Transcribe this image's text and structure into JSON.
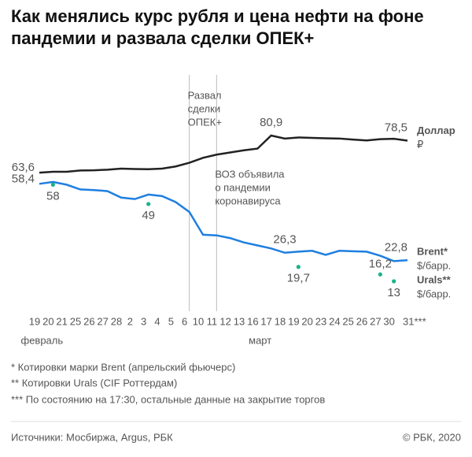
{
  "chart_data": {
    "type": "line",
    "title": [
      "Как менялись курс рубля и цена нефти на фоне",
      "пандемии и развала сделки ОПЕК+"
    ],
    "categories": [
      "19",
      "20",
      "21",
      "25",
      "26",
      "27",
      "28",
      "2",
      "3",
      "4",
      "5",
      "6",
      "10",
      "11",
      "12",
      "13",
      "16",
      "17",
      "18",
      "19",
      "20",
      "23",
      "24",
      "25",
      "26",
      "27",
      "30",
      "31***"
    ],
    "months": [
      {
        "label": "февраль",
        "category": "20"
      },
      {
        "label": "март",
        "category": "17"
      }
    ],
    "series": [
      {
        "name": "Доллар",
        "unit": "₽",
        "color": "#222222",
        "style": "line",
        "values": [
          63.6,
          64.0,
          64.0,
          64.6,
          64.7,
          65.0,
          65.5,
          65.3,
          65.2,
          65.5,
          66.5,
          68.2,
          70.5,
          72.0,
          73.0,
          74.0,
          74.8,
          80.9,
          79.5,
          80.0,
          79.8,
          79.6,
          79.5,
          79.0,
          78.6,
          79.2,
          79.4,
          78.5
        ],
        "value_labels": [
          "63,6",
          null,
          null,
          null,
          null,
          null,
          null,
          null,
          null,
          null,
          null,
          null,
          null,
          null,
          null,
          null,
          null,
          "80,9",
          null,
          null,
          null,
          null,
          null,
          null,
          null,
          null,
          null,
          "78,5"
        ]
      },
      {
        "name": "Brent*",
        "unit": "$/барр.",
        "color": "#1e7fe0",
        "style": "line",
        "values": [
          58.4,
          59.3,
          58.0,
          55.8,
          55.5,
          55.0,
          52.0,
          51.3,
          53.4,
          52.7,
          49.9,
          45.3,
          34.7,
          34.4,
          33.1,
          31.1,
          29.7,
          28.3,
          26.3,
          26.8,
          27.2,
          25.3,
          27.2,
          27.0,
          26.8,
          24.9,
          22.4,
          22.8
        ],
        "value_labels": [
          "58,4",
          null,
          null,
          null,
          null,
          null,
          null,
          null,
          null,
          null,
          null,
          null,
          null,
          null,
          null,
          null,
          null,
          null,
          "26,3",
          null,
          null,
          null,
          null,
          null,
          null,
          null,
          null,
          "22,8"
        ]
      },
      {
        "name": "Urals**",
        "unit": "$/барр.",
        "color": "#1bb28a",
        "style": "dots",
        "values": [
          null,
          58,
          null,
          null,
          null,
          null,
          null,
          null,
          49,
          null,
          null,
          null,
          null,
          null,
          null,
          null,
          null,
          null,
          null,
          19.7,
          null,
          null,
          null,
          null,
          null,
          16.2,
          13,
          null
        ],
        "value_labels": [
          null,
          "58",
          null,
          null,
          null,
          null,
          null,
          null,
          "49",
          null,
          null,
          null,
          null,
          null,
          null,
          null,
          null,
          null,
          null,
          "19,7",
          null,
          null,
          null,
          null,
          null,
          "16,2",
          "13",
          null
        ]
      }
    ],
    "annotations": [
      {
        "category": "6",
        "lines": [
          "Развал",
          "сделки",
          "ОПЕК+"
        ]
      },
      {
        "category": "11",
        "lines": [
          "ВОЗ объявила",
          "о пандемии",
          "коронавируса"
        ]
      }
    ],
    "footnotes": [
      "* Котировки марки Brent (апрельский фьючерс)",
      "** Котировки Urals  (CIF Роттердам)",
      "*** По состоянию на 17:30, остальные данные на закрытие торгов"
    ],
    "source": "Источники: Мосбиржа, Argus, РБК",
    "copyright": "© РБК, 2020"
  }
}
